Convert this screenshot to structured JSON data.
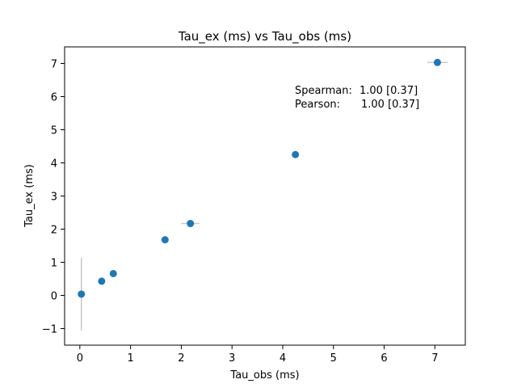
{
  "chart_data": {
    "type": "scatter",
    "title": "Tau_ex (ms) vs Tau_obs (ms)",
    "xlabel": "Tau_obs (ms)",
    "ylabel": "Tau_ex (ms)",
    "xlim": [
      -0.3,
      7.6
    ],
    "ylim": [
      -1.5,
      7.5
    ],
    "xticks": [
      0,
      1,
      2,
      3,
      4,
      5,
      6,
      7
    ],
    "yticks": [
      -1,
      0,
      1,
      2,
      3,
      4,
      5,
      6,
      7
    ],
    "xtick_labels": [
      "0",
      "1",
      "2",
      "3",
      "4",
      "5",
      "6",
      "7"
    ],
    "ytick_labels": [
      "−1",
      "0",
      "1",
      "2",
      "3",
      "4",
      "5",
      "6",
      "7"
    ],
    "grid": false,
    "marker_color": "#1f77b4",
    "errorbar_color": "#c8c8c8",
    "points": [
      {
        "x": 0.03,
        "y": 0.04,
        "xerr": 0.02,
        "yerr": 1.1
      },
      {
        "x": 0.43,
        "y": 0.43,
        "xerr": 0.05,
        "yerr": 0.05
      },
      {
        "x": 0.66,
        "y": 0.66,
        "xerr": 0.04,
        "yerr": 0.04
      },
      {
        "x": 1.68,
        "y": 1.68,
        "xerr": 0.03,
        "yerr": 0.03
      },
      {
        "x": 2.18,
        "y": 2.17,
        "xerr": 0.18,
        "yerr": 0.03
      },
      {
        "x": 4.25,
        "y": 4.25,
        "xerr": 0.03,
        "yerr": 0.03
      },
      {
        "x": 7.05,
        "y": 7.03,
        "xerr": 0.2,
        "yerr": 0.03
      }
    ],
    "annotations": {
      "spearman_label": "Spearman:",
      "spearman_value": "1.00 [0.37]",
      "pearson_label": "Pearson:",
      "pearson_value": "1.00 [0.37]"
    }
  }
}
